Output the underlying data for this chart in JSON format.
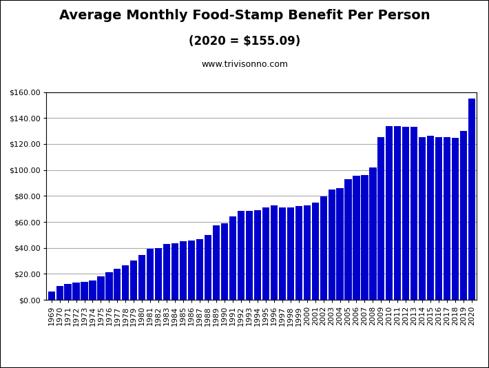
{
  "title_line1": "Average Monthly Food-Stamp Benefit Per Person",
  "title_line2": "(2020 = $155.09)",
  "subtitle": "www.trivisonno.com",
  "bar_color": "#0000CC",
  "background_color": "#FFFFFF",
  "years": [
    1969,
    1970,
    1971,
    1972,
    1973,
    1974,
    1975,
    1976,
    1977,
    1978,
    1979,
    1980,
    1981,
    1982,
    1983,
    1984,
    1985,
    1986,
    1987,
    1988,
    1989,
    1990,
    1991,
    1992,
    1993,
    1994,
    1995,
    1996,
    1997,
    1998,
    1999,
    2000,
    2001,
    2002,
    2003,
    2004,
    2005,
    2006,
    2007,
    2008,
    2009,
    2010,
    2011,
    2012,
    2013,
    2014,
    2015,
    2016,
    2017,
    2018,
    2019,
    2020
  ],
  "values": [
    6.63,
    10.55,
    12.54,
    13.5,
    14.07,
    14.78,
    18.34,
    21.44,
    24.18,
    26.76,
    30.58,
    34.47,
    39.54,
    39.74,
    43.33,
    43.59,
    45.14,
    45.78,
    46.8,
    49.91,
    57.24,
    59.0,
    64.22,
    68.61,
    68.48,
    69.03,
    71.27,
    72.64,
    71.27,
    71.12,
    72.27,
    72.62,
    74.82,
    79.67,
    84.82,
    86.17,
    92.96,
    95.35,
    96.19,
    102.19,
    125.31,
    133.79,
    133.85,
    133.41,
    133.07,
    125.35,
    126.39,
    125.35,
    125.35,
    124.52,
    129.83,
    155.09
  ],
  "ylim": [
    0,
    160
  ],
  "yticks": [
    0,
    20,
    40,
    60,
    80,
    100,
    120,
    140,
    160
  ],
  "grid_color": "#AAAAAA",
  "title_fontsize": 14,
  "subtitle_fontsize": 12,
  "website_fontsize": 9,
  "tick_fontsize": 8,
  "figsize": [
    7.1,
    5.34
  ],
  "dpi": 100
}
